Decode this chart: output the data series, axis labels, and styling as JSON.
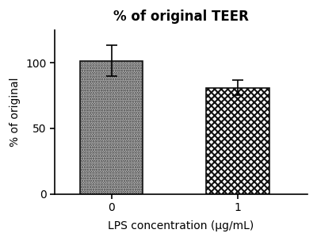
{
  "categories": [
    "0",
    "1"
  ],
  "values": [
    101.5,
    81.0
  ],
  "errors": [
    12.0,
    5.5
  ],
  "title": "% of original TEER",
  "xlabel": "LPS concentration (µg/mL)",
  "ylabel": "% of original",
  "ylim": [
    0,
    125
  ],
  "yticks": [
    0,
    50,
    100
  ],
  "bar_width": 0.5,
  "bar_positions": [
    1,
    2
  ],
  "background_color": "#ffffff",
  "title_fontsize": 12,
  "axis_fontsize": 10,
  "tick_fontsize": 10,
  "hatch1": "......",
  "bar_edgecolor": "#111111",
  "bar_facecolor": "#ffffff",
  "error_capsize": 5,
  "error_color": "black",
  "error_linewidth": 1.2,
  "hatch_linewidth1": 0.4,
  "hatch_linewidth2": 1.5
}
